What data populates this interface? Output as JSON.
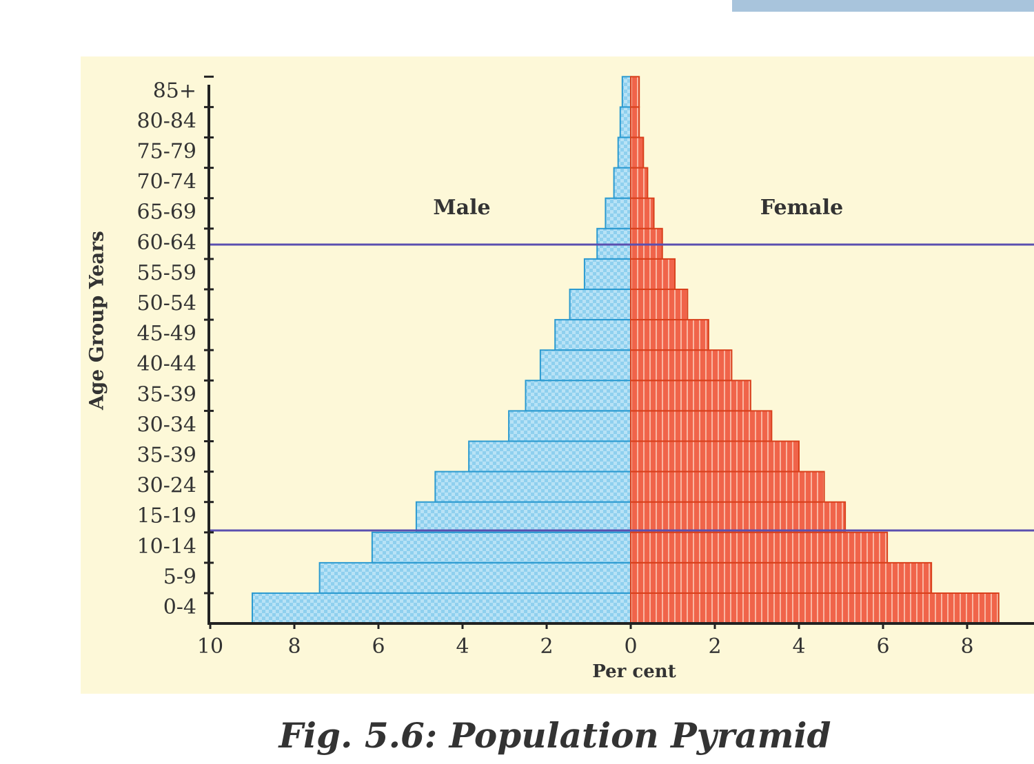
{
  "chart_data": {
    "type": "pyramid",
    "caption": "Fig. 5.6: Population Pyramid",
    "y_label": "Age Group Years",
    "x_label": "Per cent",
    "categories": [
      "0-4",
      "5-9",
      "10-14",
      "15-19",
      "30-24",
      "35-39",
      "30-34",
      "35-39",
      "40-44",
      "45-49",
      "50-54",
      "55-59",
      "60-64",
      "65-69",
      "70-74",
      "75-79",
      "80-84",
      "85+"
    ],
    "series": [
      {
        "name": "Male",
        "color": "#8fd0ee",
        "side": "left",
        "values": [
          9.0,
          7.4,
          6.15,
          5.1,
          4.65,
          3.85,
          2.9,
          2.5,
          2.15,
          1.8,
          1.45,
          1.1,
          0.8,
          0.6,
          0.4,
          0.3,
          0.25,
          0.2
        ]
      },
      {
        "name": "Female",
        "color": "#f0644a",
        "side": "right",
        "values": [
          8.75,
          7.15,
          6.1,
          5.1,
          4.6,
          4.0,
          3.35,
          2.85,
          2.4,
          1.85,
          1.35,
          1.05,
          0.75,
          0.55,
          0.4,
          0.3,
          0.2,
          0.2
        ]
      }
    ],
    "xlim": [
      -10,
      10
    ],
    "xticks": [
      {
        "value": -10,
        "label": "10"
      },
      {
        "value": -8,
        "label": "8"
      },
      {
        "value": -6,
        "label": "6"
      },
      {
        "value": -4,
        "label": "4"
      },
      {
        "value": -2,
        "label": "2"
      },
      0,
      2,
      4,
      6,
      8
    ]
  }
}
